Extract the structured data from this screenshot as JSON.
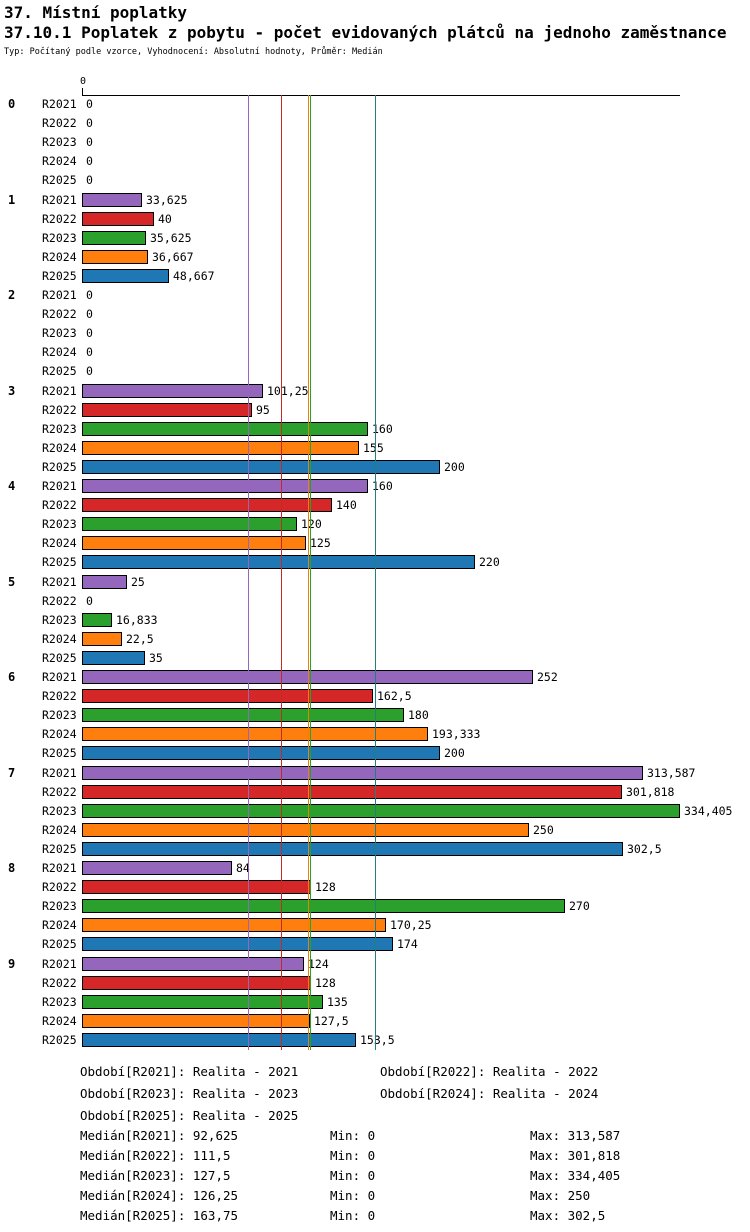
{
  "title": "37. Místní poplatky",
  "subtitle": "37.10.1 Poplatek z pobytu - počet evidovaných plátců na jednoho zaměstnance",
  "meta": "Typ: Počítaný podle vzorce, Vyhodnocení: Absolutní hodnoty, Průměr: Medián",
  "chart_data": {
    "type": "bar",
    "orientation": "horizontal",
    "axis_top_label": "0",
    "xlim": [
      0,
      334.405
    ],
    "grid": false,
    "series_names": [
      "R2021",
      "R2022",
      "R2023",
      "R2024",
      "R2025"
    ],
    "series_colors": [
      "#9467bd",
      "#d62728",
      "#2ca02c",
      "#ff7f0e",
      "#1f77b4"
    ],
    "median_line_colors": [
      "#9467bd",
      "#c62828",
      "#2ca02c",
      "#dd8800",
      "#208080"
    ],
    "medians": [
      92.625,
      111.5,
      127.5,
      126.25,
      163.75
    ],
    "groups": [
      {
        "label": "0",
        "values": [
          0,
          0,
          0,
          0,
          0
        ],
        "display": [
          "0",
          "0",
          "0",
          "0",
          "0"
        ]
      },
      {
        "label": "1",
        "values": [
          33.625,
          40,
          35.625,
          36.667,
          48.667
        ],
        "display": [
          "33,625",
          "40",
          "35,625",
          "36,667",
          "48,667"
        ]
      },
      {
        "label": "2",
        "values": [
          0,
          0,
          0,
          0,
          0
        ],
        "display": [
          "0",
          "0",
          "0",
          "0",
          "0"
        ]
      },
      {
        "label": "3",
        "values": [
          101.25,
          95,
          160,
          155,
          200
        ],
        "display": [
          "101,25",
          "95",
          "160",
          "155",
          "200"
        ]
      },
      {
        "label": "4",
        "values": [
          160,
          140,
          120,
          125,
          220
        ],
        "display": [
          "160",
          "140",
          "120",
          "125",
          "220"
        ]
      },
      {
        "label": "5",
        "values": [
          25,
          0,
          16.833,
          22.5,
          35
        ],
        "display": [
          "25",
          "0",
          "16,833",
          "22,5",
          "35"
        ]
      },
      {
        "label": "6",
        "values": [
          252,
          162.5,
          180,
          193.333,
          200
        ],
        "display": [
          "252",
          "162,5",
          "180",
          "193,333",
          "200"
        ]
      },
      {
        "label": "7",
        "values": [
          313.587,
          301.818,
          334.405,
          250,
          302.5
        ],
        "display": [
          "313,587",
          "301,818",
          "334,405",
          "250",
          "302,5"
        ]
      },
      {
        "label": "8",
        "values": [
          84,
          128,
          270,
          170.25,
          174
        ],
        "display": [
          "84",
          "128",
          "270",
          "170,25",
          "174"
        ]
      },
      {
        "label": "9",
        "values": [
          124,
          128,
          135,
          127.5,
          153.5
        ],
        "display": [
          "124",
          "128",
          "135",
          "127,5",
          "153,5"
        ]
      }
    ]
  },
  "legend": {
    "periods": [
      {
        "text": "Období[R2021]: Realita - 2021"
      },
      {
        "text": "Období[R2022]: Realita - 2022"
      },
      {
        "text": "Období[R2023]: Realita - 2023"
      },
      {
        "text": "Období[R2024]: Realita - 2024"
      },
      {
        "text": "Období[R2025]: Realita - 2025"
      }
    ],
    "stats": [
      {
        "median": "Medián[R2021]: 92,625",
        "min": "Min: 0",
        "max": "Max: 313,587"
      },
      {
        "median": "Medián[R2022]: 111,5",
        "min": "Min: 0",
        "max": "Max: 301,818"
      },
      {
        "median": "Medián[R2023]: 127,5",
        "min": "Min: 0",
        "max": "Max: 334,405"
      },
      {
        "median": "Medián[R2024]: 126,25",
        "min": "Min: 0",
        "max": "Max: 250"
      },
      {
        "median": "Medián[R2025]: 163,75",
        "min": "Min: 0",
        "max": "Max: 302,5"
      }
    ]
  }
}
